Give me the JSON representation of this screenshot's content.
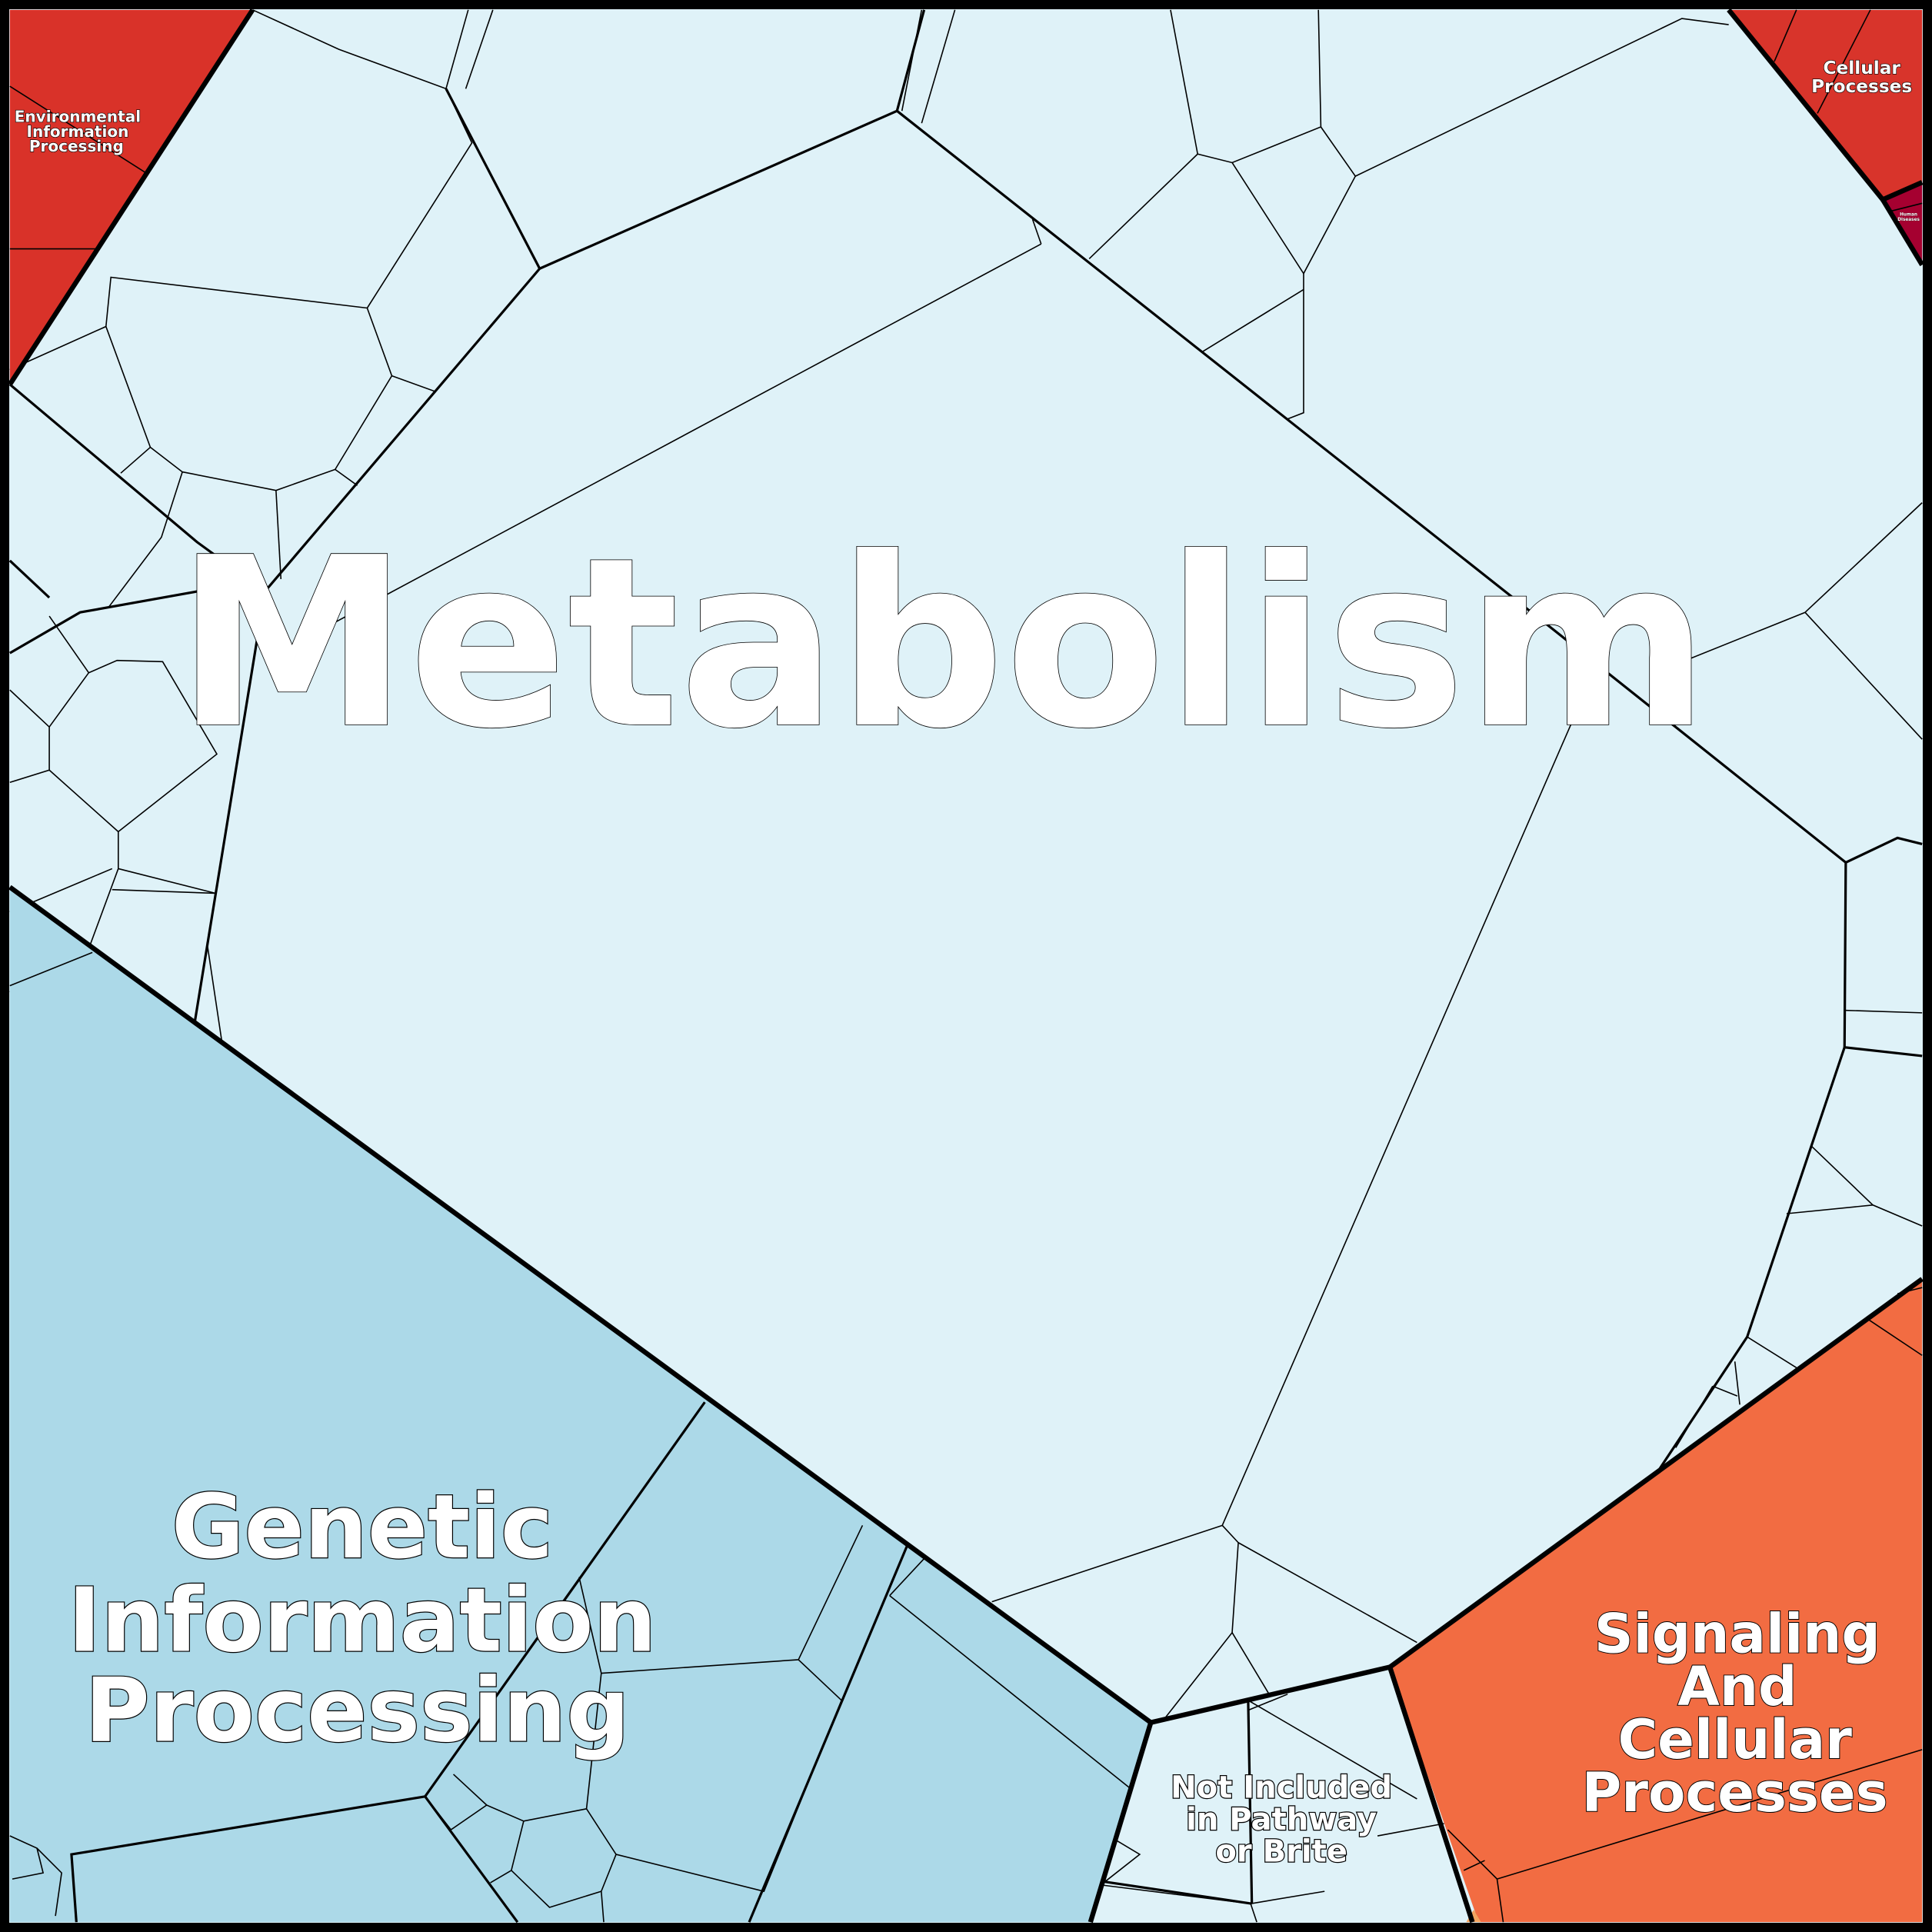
{
  "colors": {
    "metabolism": "#dff2f8",
    "genetic_information_processing": "#acd9e8",
    "environmental_information_processing": "#d93229",
    "cellular_processes": "#d8342b",
    "human_diseases": "#a50030",
    "signaling_and_cellular_processes": "#f26c42",
    "not_included": "#dff2f8",
    "small_category": "#f4a460",
    "border": "#000000"
  },
  "labels": {
    "metabolism": "Metabolism",
    "genetic": [
      "Genetic",
      "Information",
      "Processing"
    ],
    "signaling": [
      "Signaling",
      "And",
      "Cellular",
      "Processes"
    ],
    "not_included": [
      "Not Included",
      "in Pathway",
      "or Brite"
    ],
    "environmental": [
      "Environmental",
      "Information",
      "Processing"
    ],
    "cellular": [
      "Cellular",
      "Processes"
    ],
    "human_diseases": [
      "Human",
      "Diseases"
    ]
  }
}
